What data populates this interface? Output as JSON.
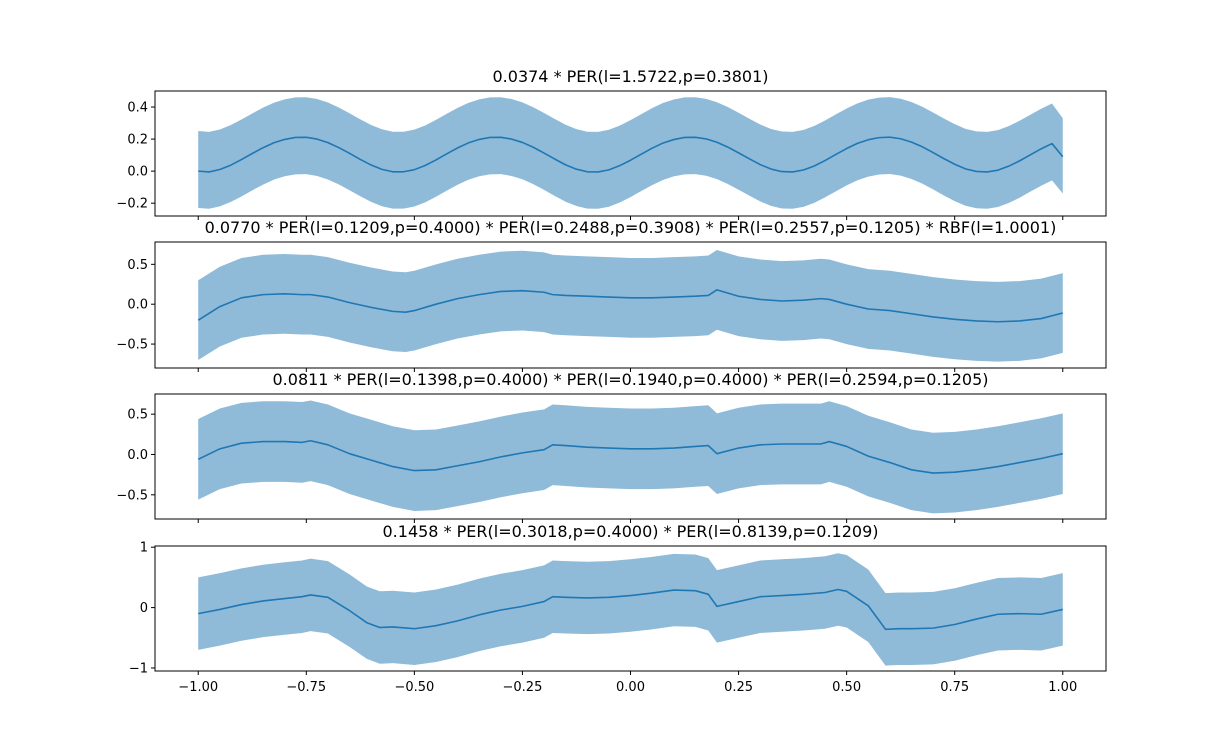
{
  "figure": {
    "background": "#ffffff",
    "line_color": "#1f77b4",
    "band_color": "#8fbbd9"
  },
  "chart_data": [
    {
      "type": "line",
      "title": "0.0374 * PER(l=1.5722,p=0.3801)",
      "xlim": [
        -1.1,
        1.1
      ],
      "ylim": [
        -0.28,
        0.5
      ],
      "yticks": [
        -0.2,
        0.0,
        0.2,
        0.4
      ],
      "ytick_labels": [
        "−0.2",
        "0.0",
        "0.2",
        "0.4"
      ],
      "xticks": [
        -1.0,
        -0.75,
        -0.5,
        -0.25,
        0.0,
        0.25,
        0.5,
        0.75,
        1.0
      ],
      "xtick_labels": [],
      "series": [
        {
          "x": [
            -1.0,
            -0.975,
            -0.95,
            -0.925,
            -0.9,
            -0.875,
            -0.85,
            -0.825,
            -0.8,
            -0.775,
            -0.75,
            -0.725,
            -0.7,
            -0.675,
            -0.65,
            -0.625,
            -0.6,
            -0.575,
            -0.55,
            -0.525,
            -0.5,
            -0.475,
            -0.45,
            -0.425,
            -0.4,
            -0.375,
            -0.35,
            -0.325,
            -0.3,
            -0.275,
            -0.25,
            -0.225,
            -0.2,
            -0.175,
            -0.15,
            -0.125,
            -0.1,
            -0.075,
            -0.05,
            -0.025,
            0.0,
            0.025,
            0.05,
            0.075,
            0.1,
            0.125,
            0.15,
            0.175,
            0.2,
            0.225,
            0.25,
            0.275,
            0.3,
            0.325,
            0.35,
            0.375,
            0.4,
            0.425,
            0.45,
            0.475,
            0.5,
            0.525,
            0.55,
            0.575,
            0.6,
            0.625,
            0.65,
            0.675,
            0.7,
            0.725,
            0.75,
            0.775,
            0.8,
            0.825,
            0.85,
            0.875,
            0.9,
            0.925,
            0.95,
            0.975,
            1.0
          ],
          "mean": [
            0.0,
            -0.005,
            0.01,
            0.037,
            0.072,
            0.11,
            0.146,
            0.177,
            0.198,
            0.21,
            0.211,
            0.2,
            0.178,
            0.147,
            0.111,
            0.073,
            0.038,
            0.011,
            -0.004,
            -0.004,
            0.009,
            0.035,
            0.07,
            0.108,
            0.145,
            0.176,
            0.198,
            0.21,
            0.211,
            0.2,
            0.179,
            0.149,
            0.113,
            0.075,
            0.039,
            0.012,
            -0.004,
            -0.005,
            0.008,
            0.034,
            0.068,
            0.106,
            0.143,
            0.175,
            0.197,
            0.21,
            0.211,
            0.201,
            0.18,
            0.15,
            0.114,
            0.077,
            0.041,
            0.013,
            -0.003,
            -0.005,
            0.007,
            0.032,
            0.066,
            0.104,
            0.141,
            0.173,
            0.196,
            0.209,
            0.212,
            0.202,
            0.181,
            0.152,
            0.116,
            0.078,
            0.043,
            0.014,
            -0.002,
            -0.005,
            0.006,
            0.031,
            0.064,
            0.102,
            0.139,
            0.172,
            0.09
          ],
          "lower": [
            -0.23,
            -0.235,
            -0.22,
            -0.193,
            -0.158,
            -0.12,
            -0.084,
            -0.053,
            -0.032,
            -0.02,
            -0.019,
            -0.03,
            -0.052,
            -0.083,
            -0.119,
            -0.157,
            -0.192,
            -0.219,
            -0.234,
            -0.234,
            -0.221,
            -0.195,
            -0.16,
            -0.122,
            -0.085,
            -0.054,
            -0.032,
            -0.02,
            -0.019,
            -0.03,
            -0.051,
            -0.081,
            -0.117,
            -0.155,
            -0.191,
            -0.218,
            -0.234,
            -0.235,
            -0.222,
            -0.196,
            -0.162,
            -0.124,
            -0.087,
            -0.055,
            -0.033,
            -0.02,
            -0.019,
            -0.029,
            -0.05,
            -0.08,
            -0.116,
            -0.153,
            -0.189,
            -0.217,
            -0.233,
            -0.235,
            -0.223,
            -0.198,
            -0.164,
            -0.126,
            -0.089,
            -0.057,
            -0.034,
            -0.021,
            -0.018,
            -0.028,
            -0.049,
            -0.078,
            -0.114,
            -0.152,
            -0.187,
            -0.216,
            -0.232,
            -0.235,
            -0.224,
            -0.199,
            -0.166,
            -0.128,
            -0.091,
            -0.058,
            -0.14
          ],
          "upper": [
            0.25,
            0.245,
            0.26,
            0.287,
            0.322,
            0.36,
            0.396,
            0.427,
            0.448,
            0.46,
            0.461,
            0.45,
            0.428,
            0.397,
            0.361,
            0.323,
            0.288,
            0.261,
            0.246,
            0.246,
            0.259,
            0.285,
            0.32,
            0.358,
            0.395,
            0.426,
            0.448,
            0.46,
            0.461,
            0.45,
            0.429,
            0.399,
            0.363,
            0.325,
            0.289,
            0.262,
            0.246,
            0.245,
            0.258,
            0.284,
            0.318,
            0.356,
            0.393,
            0.425,
            0.447,
            0.46,
            0.461,
            0.451,
            0.43,
            0.4,
            0.364,
            0.327,
            0.291,
            0.263,
            0.247,
            0.245,
            0.257,
            0.282,
            0.316,
            0.354,
            0.391,
            0.423,
            0.446,
            0.459,
            0.462,
            0.452,
            0.431,
            0.402,
            0.366,
            0.328,
            0.293,
            0.264,
            0.248,
            0.245,
            0.256,
            0.281,
            0.314,
            0.352,
            0.389,
            0.422,
            0.33
          ]
        }
      ]
    },
    {
      "type": "line",
      "title": "0.0770 * PER(l=0.1209,p=0.4000) * PER(l=0.2488,p=0.3908) * PER(l=0.2557,p=0.1205) * RBF(l=1.0001)",
      "xlim": [
        -1.1,
        1.1
      ],
      "ylim": [
        -0.8,
        0.78
      ],
      "yticks": [
        -0.5,
        0.0,
        0.5
      ],
      "ytick_labels": [
        "−0.5",
        "0.0",
        "0.5"
      ],
      "xticks": [
        -1.0,
        -0.75,
        -0.5,
        -0.25,
        0.0,
        0.25,
        0.5,
        0.75,
        1.0
      ],
      "xtick_labels": [],
      "series": [
        {
          "x": [
            -1.0,
            -0.95,
            -0.9,
            -0.85,
            -0.8,
            -0.76,
            -0.74,
            -0.7,
            -0.65,
            -0.6,
            -0.55,
            -0.52,
            -0.5,
            -0.45,
            -0.4,
            -0.35,
            -0.3,
            -0.25,
            -0.2,
            -0.18,
            -0.15,
            -0.1,
            -0.05,
            0.0,
            0.05,
            0.1,
            0.15,
            0.18,
            0.2,
            0.25,
            0.3,
            0.35,
            0.4,
            0.44,
            0.46,
            0.5,
            0.55,
            0.6,
            0.65,
            0.7,
            0.75,
            0.8,
            0.85,
            0.9,
            0.95,
            1.0
          ],
          "mean": [
            -0.2,
            -0.03,
            0.08,
            0.12,
            0.13,
            0.12,
            0.12,
            0.09,
            0.02,
            -0.04,
            -0.09,
            -0.1,
            -0.08,
            0.0,
            0.07,
            0.12,
            0.16,
            0.17,
            0.15,
            0.12,
            0.11,
            0.1,
            0.09,
            0.08,
            0.08,
            0.09,
            0.1,
            0.11,
            0.18,
            0.1,
            0.06,
            0.04,
            0.05,
            0.07,
            0.06,
            0.0,
            -0.06,
            -0.08,
            -0.12,
            -0.16,
            -0.19,
            -0.21,
            -0.22,
            -0.21,
            -0.18,
            -0.11
          ],
          "lower": [
            -0.7,
            -0.53,
            -0.42,
            -0.38,
            -0.37,
            -0.38,
            -0.38,
            -0.41,
            -0.48,
            -0.54,
            -0.59,
            -0.6,
            -0.58,
            -0.5,
            -0.43,
            -0.38,
            -0.34,
            -0.33,
            -0.35,
            -0.38,
            -0.39,
            -0.4,
            -0.41,
            -0.42,
            -0.42,
            -0.41,
            -0.4,
            -0.39,
            -0.32,
            -0.4,
            -0.44,
            -0.46,
            -0.45,
            -0.43,
            -0.44,
            -0.5,
            -0.56,
            -0.58,
            -0.62,
            -0.66,
            -0.69,
            -0.71,
            -0.72,
            -0.71,
            -0.68,
            -0.61
          ],
          "upper": [
            0.3,
            0.47,
            0.58,
            0.62,
            0.63,
            0.62,
            0.62,
            0.59,
            0.52,
            0.46,
            0.41,
            0.4,
            0.42,
            0.5,
            0.57,
            0.62,
            0.66,
            0.67,
            0.65,
            0.62,
            0.61,
            0.6,
            0.59,
            0.58,
            0.58,
            0.59,
            0.6,
            0.61,
            0.68,
            0.6,
            0.56,
            0.54,
            0.55,
            0.57,
            0.56,
            0.5,
            0.44,
            0.42,
            0.38,
            0.34,
            0.31,
            0.29,
            0.28,
            0.29,
            0.32,
            0.39
          ]
        }
      ]
    },
    {
      "type": "line",
      "title": "0.0811 * PER(l=0.1398,p=0.4000) * PER(l=0.1940,p=0.4000) * PER(l=0.2594,p=0.1205)",
      "xlim": [
        -1.1,
        1.1
      ],
      "ylim": [
        -0.8,
        0.75
      ],
      "yticks": [
        -0.5,
        0.0,
        0.5
      ],
      "ytick_labels": [
        "−0.5",
        "0.0",
        "0.5"
      ],
      "xticks": [
        -1.0,
        -0.75,
        -0.5,
        -0.25,
        0.0,
        0.25,
        0.5,
        0.75,
        1.0
      ],
      "xtick_labels": [],
      "series": [
        {
          "x": [
            -1.0,
            -0.95,
            -0.9,
            -0.85,
            -0.8,
            -0.76,
            -0.74,
            -0.7,
            -0.65,
            -0.6,
            -0.55,
            -0.5,
            -0.45,
            -0.4,
            -0.35,
            -0.3,
            -0.25,
            -0.2,
            -0.18,
            -0.15,
            -0.1,
            -0.05,
            0.0,
            0.05,
            0.1,
            0.15,
            0.18,
            0.2,
            0.25,
            0.3,
            0.35,
            0.4,
            0.44,
            0.46,
            0.5,
            0.55,
            0.6,
            0.65,
            0.7,
            0.75,
            0.8,
            0.85,
            0.9,
            0.95,
            1.0
          ],
          "mean": [
            -0.06,
            0.07,
            0.14,
            0.16,
            0.16,
            0.15,
            0.17,
            0.12,
            0.01,
            -0.07,
            -0.15,
            -0.2,
            -0.19,
            -0.14,
            -0.09,
            -0.03,
            0.02,
            0.06,
            0.12,
            0.11,
            0.09,
            0.08,
            0.07,
            0.07,
            0.08,
            0.1,
            0.11,
            0.01,
            0.08,
            0.12,
            0.13,
            0.13,
            0.13,
            0.16,
            0.1,
            -0.02,
            -0.1,
            -0.19,
            -0.23,
            -0.22,
            -0.19,
            -0.15,
            -0.1,
            -0.05,
            0.01
          ],
          "lower": [
            -0.56,
            -0.43,
            -0.36,
            -0.34,
            -0.34,
            -0.35,
            -0.33,
            -0.38,
            -0.49,
            -0.57,
            -0.65,
            -0.7,
            -0.69,
            -0.64,
            -0.59,
            -0.53,
            -0.48,
            -0.44,
            -0.38,
            -0.39,
            -0.41,
            -0.42,
            -0.43,
            -0.43,
            -0.42,
            -0.4,
            -0.39,
            -0.49,
            -0.42,
            -0.38,
            -0.37,
            -0.37,
            -0.37,
            -0.34,
            -0.4,
            -0.52,
            -0.6,
            -0.69,
            -0.73,
            -0.72,
            -0.69,
            -0.65,
            -0.6,
            -0.55,
            -0.49
          ],
          "upper": [
            0.44,
            0.57,
            0.64,
            0.66,
            0.66,
            0.65,
            0.67,
            0.62,
            0.51,
            0.43,
            0.35,
            0.3,
            0.31,
            0.36,
            0.41,
            0.47,
            0.52,
            0.56,
            0.62,
            0.61,
            0.59,
            0.58,
            0.57,
            0.57,
            0.58,
            0.6,
            0.61,
            0.51,
            0.58,
            0.62,
            0.63,
            0.63,
            0.63,
            0.66,
            0.6,
            0.48,
            0.4,
            0.31,
            0.27,
            0.28,
            0.31,
            0.35,
            0.4,
            0.45,
            0.51
          ]
        }
      ]
    },
    {
      "type": "line",
      "title": "0.1458 * PER(l=0.3018,p=0.4000) * PER(l=0.8139,p=0.1209)",
      "xlim": [
        -1.1,
        1.1
      ],
      "ylim": [
        -1.05,
        1.02
      ],
      "yticks": [
        -1,
        0,
        1
      ],
      "ytick_labels": [
        "−1",
        "0",
        "1"
      ],
      "xticks": [
        -1.0,
        -0.75,
        -0.5,
        -0.25,
        0.0,
        0.25,
        0.5,
        0.75,
        1.0
      ],
      "xtick_labels": [
        "−1.00",
        "−0.75",
        "−0.50",
        "−0.25",
        "0.00",
        "0.25",
        "0.50",
        "0.75",
        "1.00"
      ],
      "series": [
        {
          "x": [
            -1.0,
            -0.95,
            -0.9,
            -0.85,
            -0.8,
            -0.76,
            -0.74,
            -0.7,
            -0.65,
            -0.61,
            -0.58,
            -0.55,
            -0.5,
            -0.45,
            -0.4,
            -0.35,
            -0.3,
            -0.25,
            -0.2,
            -0.18,
            -0.15,
            -0.1,
            -0.05,
            0.0,
            0.05,
            0.1,
            0.15,
            0.18,
            0.2,
            0.25,
            0.3,
            0.35,
            0.4,
            0.45,
            0.48,
            0.5,
            0.55,
            0.59,
            0.62,
            0.65,
            0.7,
            0.75,
            0.8,
            0.85,
            0.9,
            0.95,
            1.0
          ],
          "mean": [
            -0.1,
            -0.03,
            0.05,
            0.11,
            0.15,
            0.18,
            0.21,
            0.17,
            -0.05,
            -0.25,
            -0.33,
            -0.32,
            -0.35,
            -0.3,
            -0.22,
            -0.12,
            -0.04,
            0.02,
            0.1,
            0.18,
            0.17,
            0.16,
            0.17,
            0.2,
            0.24,
            0.29,
            0.28,
            0.22,
            0.02,
            0.1,
            0.18,
            0.2,
            0.22,
            0.25,
            0.3,
            0.27,
            0.03,
            -0.36,
            -0.35,
            -0.35,
            -0.34,
            -0.28,
            -0.19,
            -0.11,
            -0.1,
            -0.11,
            -0.03
          ],
          "lower": [
            -0.7,
            -0.63,
            -0.55,
            -0.49,
            -0.45,
            -0.42,
            -0.39,
            -0.43,
            -0.65,
            -0.85,
            -0.93,
            -0.92,
            -0.95,
            -0.9,
            -0.82,
            -0.72,
            -0.64,
            -0.58,
            -0.5,
            -0.42,
            -0.43,
            -0.44,
            -0.43,
            -0.4,
            -0.36,
            -0.31,
            -0.32,
            -0.38,
            -0.58,
            -0.5,
            -0.42,
            -0.4,
            -0.38,
            -0.35,
            -0.3,
            -0.33,
            -0.57,
            -0.96,
            -0.95,
            -0.95,
            -0.94,
            -0.88,
            -0.79,
            -0.71,
            -0.7,
            -0.71,
            -0.63
          ],
          "upper": [
            0.5,
            0.57,
            0.65,
            0.71,
            0.75,
            0.78,
            0.81,
            0.77,
            0.55,
            0.35,
            0.27,
            0.28,
            0.25,
            0.3,
            0.38,
            0.48,
            0.56,
            0.62,
            0.7,
            0.78,
            0.77,
            0.76,
            0.77,
            0.8,
            0.84,
            0.89,
            0.88,
            0.82,
            0.62,
            0.7,
            0.78,
            0.8,
            0.82,
            0.85,
            0.9,
            0.87,
            0.63,
            0.24,
            0.25,
            0.25,
            0.26,
            0.32,
            0.41,
            0.49,
            0.5,
            0.49,
            0.57
          ]
        }
      ]
    }
  ]
}
